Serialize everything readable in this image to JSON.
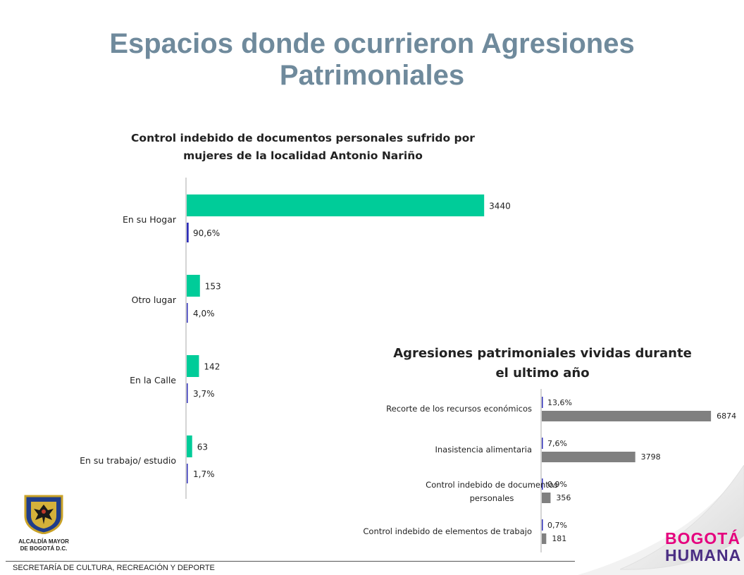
{
  "slide": {
    "title_line1": "Espacios donde ocurrieron Agresiones",
    "title_line2": "Patrimoniales",
    "footer": "SECRETARÍA DE CULTURA, RECREACIÓN Y DEPORTE",
    "logo_left_caption_line1": "ALCALDÍA MAYOR",
    "logo_left_caption_line2": "DE BOGOTÁ D.C.",
    "logo_right_line1": "BOGOTÁ",
    "logo_right_line2": "HUMANA",
    "logo_left_icon": "coat-of-arms-icon",
    "colors": {
      "title": "#6f8a9c",
      "green_bar": "#00cc99",
      "blue_bar": "#2e2eb8",
      "gray_bar": "#808080"
    }
  },
  "chart_data": [
    {
      "type": "bar",
      "orientation": "horizontal",
      "title_line1": "Control indebido de documentos personales sufrido por",
      "title_line2": "mujeres de la localidad  Antonio Nariño",
      "categories": [
        "En su Hogar",
        "Otro lugar",
        "En la Calle",
        "En su trabajo/ estudio"
      ],
      "series": [
        {
          "values": [
            3440,
            153,
            142,
            63
          ],
          "labels": [
            "3440",
            "153",
            "142",
            "63"
          ],
          "color": "#00cc99"
        },
        {
          "values": [
            90.6,
            4.0,
            3.7,
            1.7
          ],
          "labels": [
            "90,6%",
            "4,0%",
            "3,7%",
            "1,7%"
          ],
          "color": "#2e2eb8"
        }
      ],
      "xlim": [
        0,
        4400
      ],
      "grid": false
    },
    {
      "type": "bar",
      "orientation": "horizontal",
      "title_line1": "Agresiones patrimoniales vividas durante",
      "title_line2": "el ultimo año",
      "categories": [
        [
          "Recorte de los recursos económicos"
        ],
        [
          "Inasistencia alimentaria"
        ],
        [
          "Control indebido de documentos",
          "personales"
        ],
        [
          "Control indebido de elementos de trabajo"
        ]
      ],
      "series": [
        {
          "values": [
            13.6,
            7.6,
            0.9,
            0.7
          ],
          "labels": [
            "13,6%",
            "7,6%",
            "0,9%",
            "0,7%"
          ],
          "color": "#2e2eb8"
        },
        {
          "values": [
            6874,
            3798,
            356,
            181
          ],
          "labels": [
            "6874",
            "3798",
            "356",
            "181"
          ],
          "color": "#808080"
        }
      ],
      "xlim": [
        0,
        7300
      ],
      "grid": false
    }
  ]
}
